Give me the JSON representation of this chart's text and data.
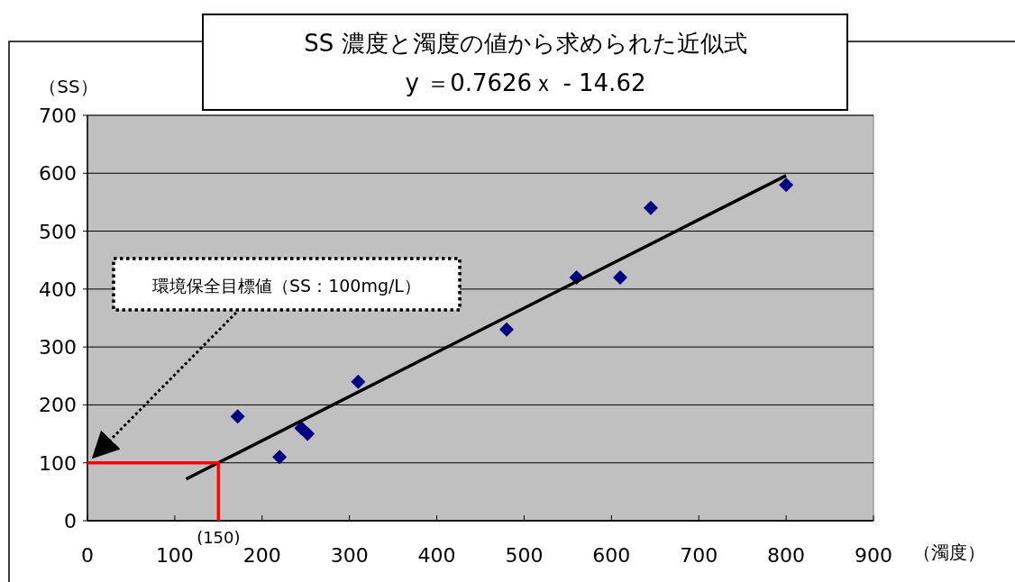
{
  "chart_data": {
    "type": "scatter",
    "title": "SS 濃度と濁度の値から求められた近似式",
    "subtitle": "y ＝0.7626ｘ - 14.62",
    "xlabel": "（濁度）",
    "ylabel": "（SS）",
    "xlim": [
      0,
      900
    ],
    "xticks": [
      0,
      100,
      200,
      300,
      400,
      500,
      600,
      700,
      800,
      900
    ],
    "ylim": [
      0,
      700
    ],
    "yticks": [
      0,
      100,
      200,
      300,
      400,
      500,
      600,
      700
    ],
    "grid": "y",
    "series": [
      {
        "type": "scatter",
        "marker": "diamond",
        "color": "#000080",
        "x": [
          172,
          220,
          245,
          252,
          310,
          480,
          560,
          610,
          645,
          800
        ],
        "values": [
          180,
          110,
          160,
          150,
          240,
          330,
          420,
          420,
          540,
          580
        ]
      },
      {
        "type": "line",
        "marker": "none",
        "color": "#000000",
        "x": [
          113,
          800
        ],
        "values": [
          72,
          596
        ]
      },
      {
        "type": "line",
        "marker": "none",
        "color": "#ff0000",
        "x": [
          0,
          150,
          150
        ],
        "values": [
          100,
          100,
          0
        ]
      }
    ],
    "annotations": [
      "環境保全目標値（SS：100mg/L）",
      {
        "text": "(150)",
        "x": 150,
        "y": 0
      }
    ]
  }
}
